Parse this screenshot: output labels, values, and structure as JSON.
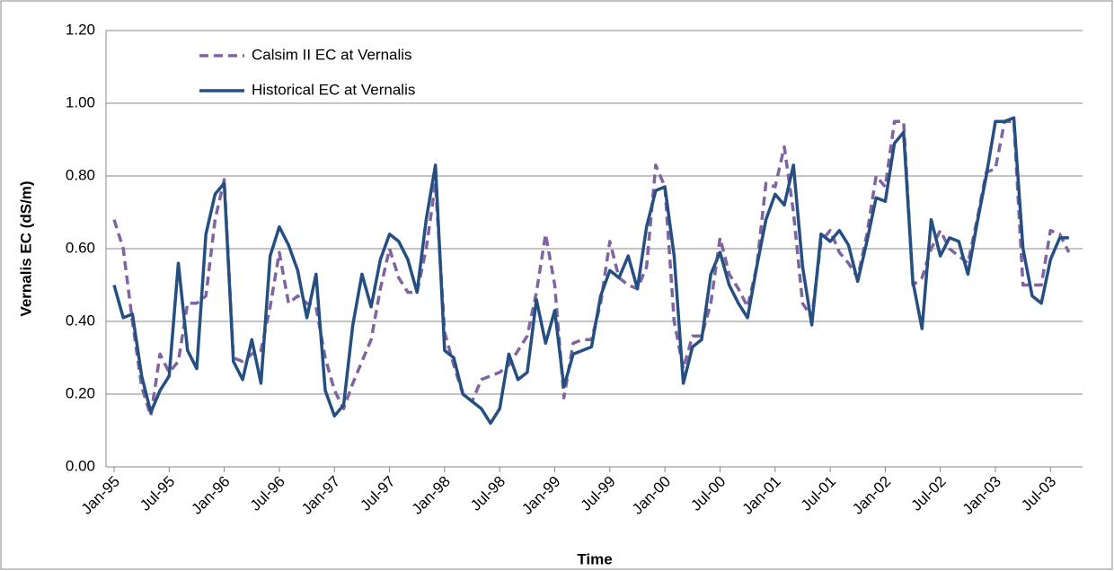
{
  "chart_data": {
    "type": "line",
    "y_label": "Vernalis EC (dS/m)",
    "x_label": "Time",
    "categories": [
      "Jan-95",
      null,
      null,
      null,
      null,
      null,
      "Jul-95",
      null,
      null,
      null,
      null,
      null,
      "Jan-96",
      null,
      null,
      null,
      null,
      null,
      "Jul-96",
      null,
      null,
      null,
      null,
      null,
      "Jan-97",
      null,
      null,
      null,
      null,
      null,
      "Jul-97",
      null,
      null,
      null,
      null,
      null,
      "Jan-98",
      null,
      null,
      null,
      null,
      null,
      "Jul-98",
      null,
      null,
      null,
      null,
      null,
      "Jan-99",
      null,
      null,
      null,
      null,
      null,
      "Jul-99",
      null,
      null,
      null,
      null,
      null,
      "Jan-00",
      null,
      null,
      null,
      null,
      null,
      "Jul-00",
      null,
      null,
      null,
      null,
      null,
      "Jan-01",
      null,
      null,
      null,
      null,
      null,
      "Jul-01",
      null,
      null,
      null,
      null,
      null,
      "Jan-02",
      null,
      null,
      null,
      null,
      null,
      "Jul-02",
      null,
      null,
      null,
      null,
      null,
      "Jan-03",
      null,
      null,
      null,
      null,
      null,
      "Jul-03",
      null,
      null
    ],
    "series": [
      {
        "name": "Calsim II EC at Vernalis",
        "color": "#8064a2",
        "dashed": true,
        "values": [
          0.68,
          0.6,
          0.4,
          0.22,
          0.14,
          0.31,
          0.26,
          0.29,
          0.45,
          0.45,
          0.47,
          0.68,
          0.79,
          0.3,
          0.29,
          0.31,
          0.32,
          0.44,
          0.59,
          0.45,
          0.47,
          0.45,
          0.44,
          0.3,
          0.21,
          0.16,
          0.23,
          0.29,
          0.35,
          0.49,
          0.6,
          0.52,
          0.48,
          0.48,
          0.6,
          0.78,
          0.37,
          0.28,
          0.2,
          0.18,
          0.24,
          0.25,
          0.26,
          0.28,
          0.32,
          0.36,
          0.48,
          0.64,
          0.5,
          0.19,
          0.34,
          0.35,
          0.35,
          0.45,
          0.62,
          0.52,
          0.5,
          0.49,
          0.55,
          0.83,
          0.77,
          0.4,
          0.27,
          0.36,
          0.36,
          0.45,
          0.63,
          0.53,
          0.49,
          0.44,
          0.55,
          0.78,
          0.77,
          0.88,
          0.7,
          0.45,
          0.41,
          0.62,
          0.65,
          0.59,
          0.56,
          0.52,
          0.64,
          0.8,
          0.77,
          0.95,
          0.95,
          0.5,
          0.52,
          0.6,
          0.65,
          0.6,
          0.58,
          0.56,
          0.68,
          0.81,
          0.82,
          0.95,
          0.95,
          0.5,
          0.5,
          0.5,
          0.65,
          0.64,
          0.59
        ]
      },
      {
        "name": "Historical EC at Vernalis",
        "color": "#254f80",
        "dashed": false,
        "values": [
          0.5,
          0.41,
          0.42,
          0.25,
          0.15,
          0.21,
          0.25,
          0.56,
          0.32,
          0.27,
          0.64,
          0.75,
          0.78,
          0.29,
          0.24,
          0.35,
          0.23,
          0.58,
          0.66,
          0.61,
          0.54,
          0.41,
          0.53,
          0.21,
          0.14,
          0.17,
          0.39,
          0.53,
          0.44,
          0.57,
          0.64,
          0.62,
          0.57,
          0.48,
          0.68,
          0.83,
          0.32,
          0.3,
          0.2,
          0.18,
          0.16,
          0.12,
          0.16,
          0.31,
          0.24,
          0.26,
          0.46,
          0.34,
          0.43,
          0.22,
          0.31,
          0.32,
          0.33,
          0.47,
          0.54,
          0.52,
          0.58,
          0.49,
          0.66,
          0.76,
          0.77,
          0.58,
          0.23,
          0.33,
          0.35,
          0.53,
          0.59,
          0.5,
          0.45,
          0.41,
          0.55,
          0.68,
          0.75,
          0.72,
          0.83,
          0.55,
          0.39,
          0.64,
          0.62,
          0.65,
          0.61,
          0.51,
          0.62,
          0.74,
          0.73,
          0.89,
          0.92,
          0.51,
          0.38,
          0.68,
          0.58,
          0.63,
          0.62,
          0.53,
          0.67,
          0.8,
          0.95,
          0.95,
          0.96,
          0.6,
          0.47,
          0.45,
          0.57,
          0.63,
          0.63
        ]
      }
    ],
    "ylim": [
      0,
      1.2
    ],
    "yticks": [
      {
        "value": 0,
        "label": "0.00"
      },
      {
        "value": 0.2,
        "label": "0.20"
      },
      {
        "value": 0.4,
        "label": "0.40"
      },
      {
        "value": 0.6,
        "label": "0.60"
      },
      {
        "value": 0.8,
        "label": "0.80"
      },
      {
        "value": 1,
        "label": "1.00"
      },
      {
        "value": 1.2,
        "label": "1.20"
      }
    ],
    "grid": true,
    "legend": "top-left"
  }
}
